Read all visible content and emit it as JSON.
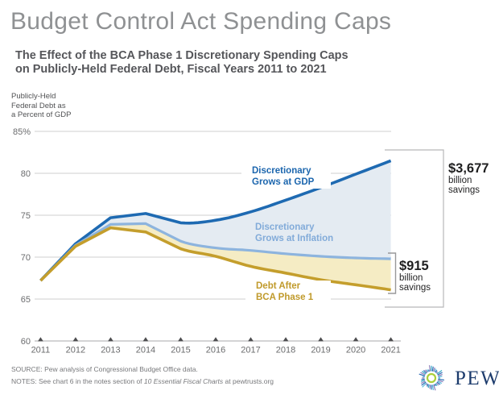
{
  "header": {
    "title": "Budget Control Act Spending Caps",
    "subtitle_line1": "The Effect of the BCA Phase 1 Discretionary Spending Caps",
    "subtitle_line2": "on Publicly-Held Federal Debt, Fiscal Years 2011 to 2021"
  },
  "chart_data": {
    "type": "area",
    "title": "Budget Control Act Spending Caps",
    "unit_label": "Publicly-Held\nFederal Debt as\na Percent of GDP",
    "categories": [
      "2011",
      "2012",
      "2013",
      "2014",
      "2015",
      "2016",
      "2017",
      "2018",
      "2019",
      "2020",
      "2021"
    ],
    "series": [
      {
        "name": "Discretionary Grows at GDP",
        "label_line1": "Discretionary",
        "label_line2": "Grows at GDP",
        "color": "#1e6ab2",
        "values": [
          67.2,
          71.6,
          74.7,
          75.2,
          74.1,
          74.4,
          75.4,
          76.8,
          78.3,
          79.9,
          81.5
        ]
      },
      {
        "name": "Discretionary Grows at Inflation",
        "label_line1": "Discretionary",
        "label_line2": "Grows at Inflation",
        "color": "#8db4de",
        "values": [
          67.2,
          71.4,
          73.9,
          74.0,
          71.9,
          71.1,
          70.8,
          70.4,
          70.1,
          69.9,
          69.8
        ]
      },
      {
        "name": "Debt After BCA Phase 1",
        "label_line1": "Debt After",
        "label_line2": "BCA Phase 1",
        "color": "#c49e2c",
        "values": [
          67.2,
          71.3,
          73.5,
          73.0,
          71.0,
          70.1,
          68.9,
          68.1,
          67.3,
          66.7,
          66.1
        ]
      }
    ],
    "fill_colors": [
      "#e4ebf2",
      "#f5ecc4"
    ],
    "ylim": [
      60,
      85
    ],
    "ytick_values": [
      85,
      80,
      75,
      70,
      65,
      60
    ],
    "ytick_labels": [
      "85%",
      "80",
      "75",
      "70",
      "65",
      "60"
    ],
    "grid": true,
    "legend_position": "on-chart labels",
    "smooth_from_index": 4
  },
  "annotations": {
    "gdp_savings": {
      "amount": "$3,677",
      "unit_line1": "billion",
      "unit_line2": "savings"
    },
    "inflation_savings": {
      "amount": "$915",
      "unit_line1": "billion",
      "unit_line2": "savings"
    }
  },
  "footer": {
    "source": "SOURCE: Pew analysis of Congressional Budget Office data.",
    "notes_prefix": "NOTES: See chart 6 in the notes section of ",
    "notes_italic": "10 Essential Fiscal Charts",
    "notes_suffix": " at pewtrusts.org",
    "brand_name": "PEW"
  }
}
